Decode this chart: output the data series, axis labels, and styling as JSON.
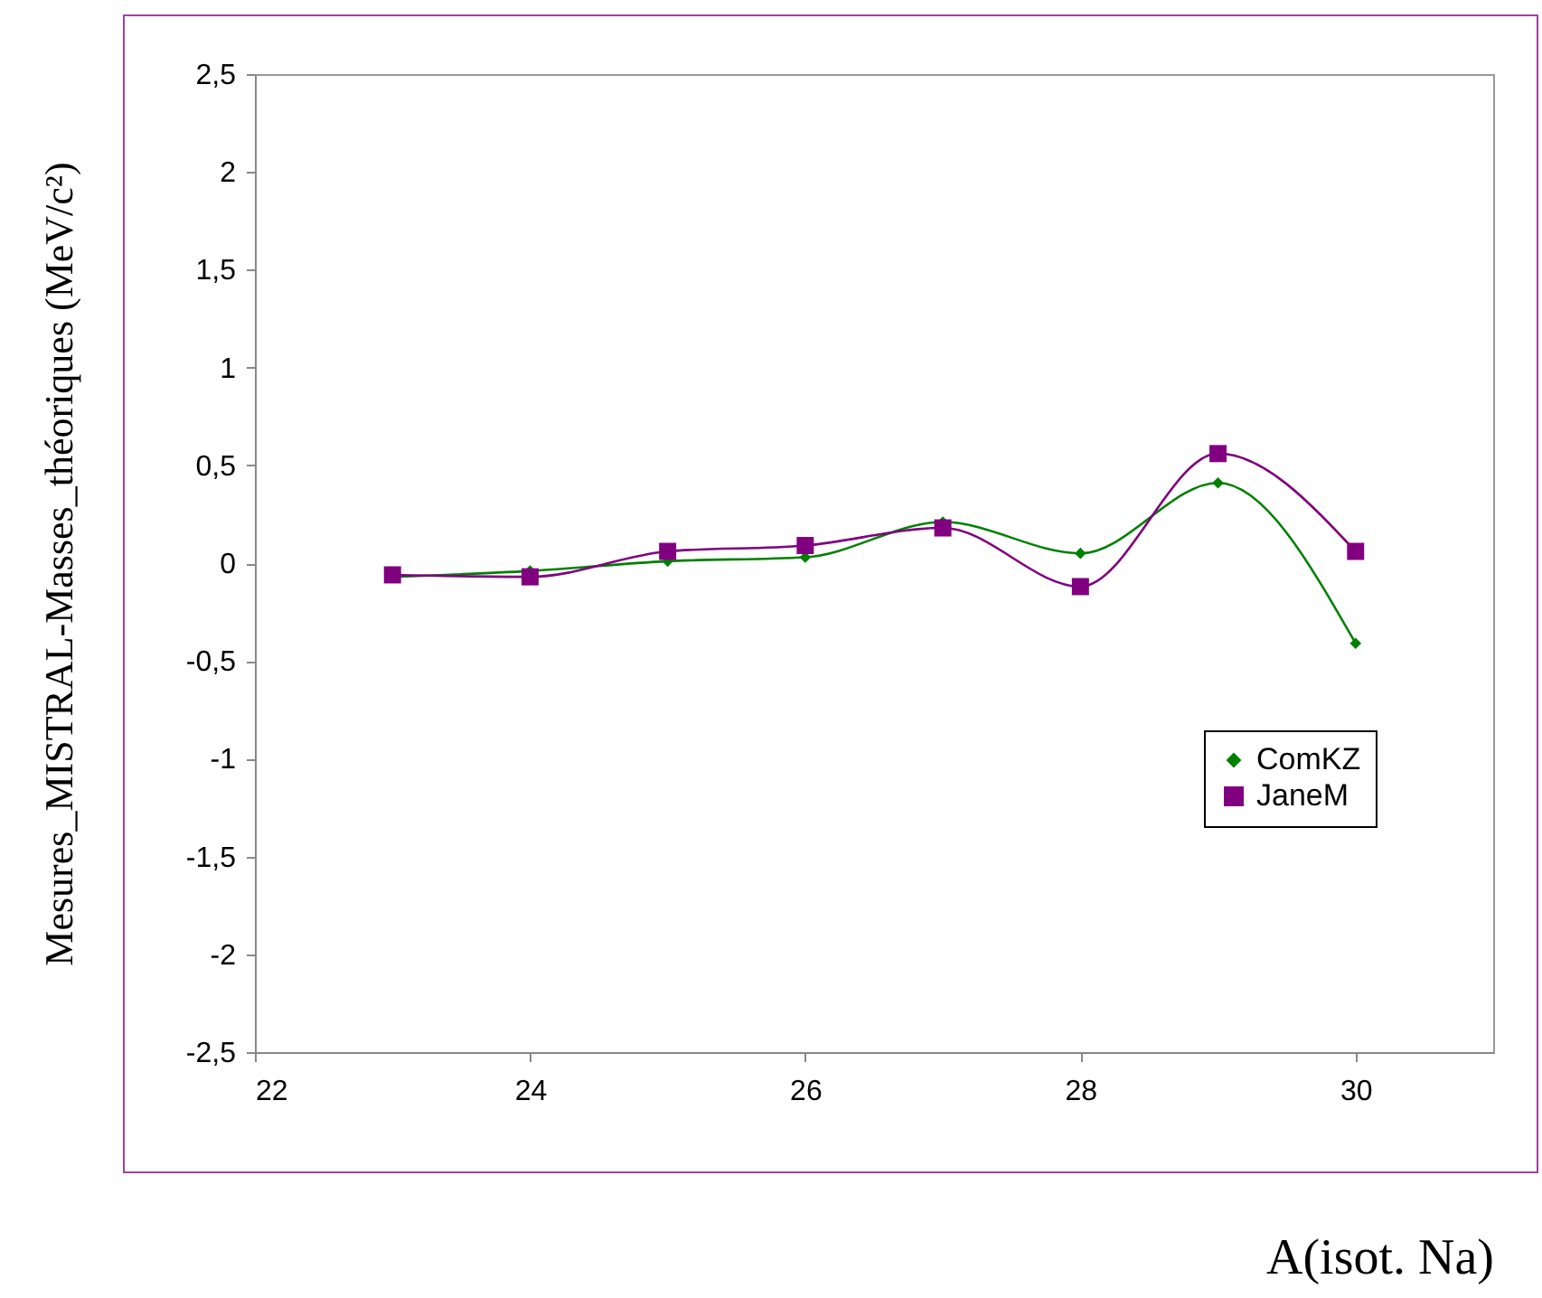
{
  "chart_data": {
    "type": "line",
    "xlabel": "A(isot. Na)",
    "ylabel": "Mesures_MISTRAL-Masses_théoriques (MeV/c²)",
    "x": [
      23,
      24,
      25,
      26,
      27,
      28,
      29,
      30
    ],
    "series": [
      {
        "name": "ComKZ",
        "color": "#008000",
        "marker": "diamond",
        "values": [
          -0.07,
          -0.04,
          0.01,
          0.03,
          0.21,
          0.05,
          0.41,
          -0.41
        ]
      },
      {
        "name": "JaneM",
        "color": "#800080",
        "marker": "square",
        "values": [
          -0.06,
          -0.07,
          0.06,
          0.09,
          0.18,
          -0.12,
          0.56,
          0.06
        ]
      }
    ],
    "xlim": [
      22,
      31
    ],
    "xticks": [
      22,
      24,
      26,
      28,
      30
    ],
    "ylim": [
      -2.5,
      2.5
    ],
    "yticks": [
      {
        "value": -2.5,
        "label": "-2,5"
      },
      -2,
      {
        "value": -1.5,
        "label": "-1,5"
      },
      -1,
      {
        "value": -0.5,
        "label": "-0,5"
      },
      0,
      {
        "value": 0.5,
        "label": "0,5"
      },
      1,
      {
        "value": 1.5,
        "label": "1,5"
      },
      2,
      {
        "value": 2.5,
        "label": "2,5"
      }
    ],
    "grid": false,
    "legend": "bottom right",
    "line_style": "solid"
  }
}
